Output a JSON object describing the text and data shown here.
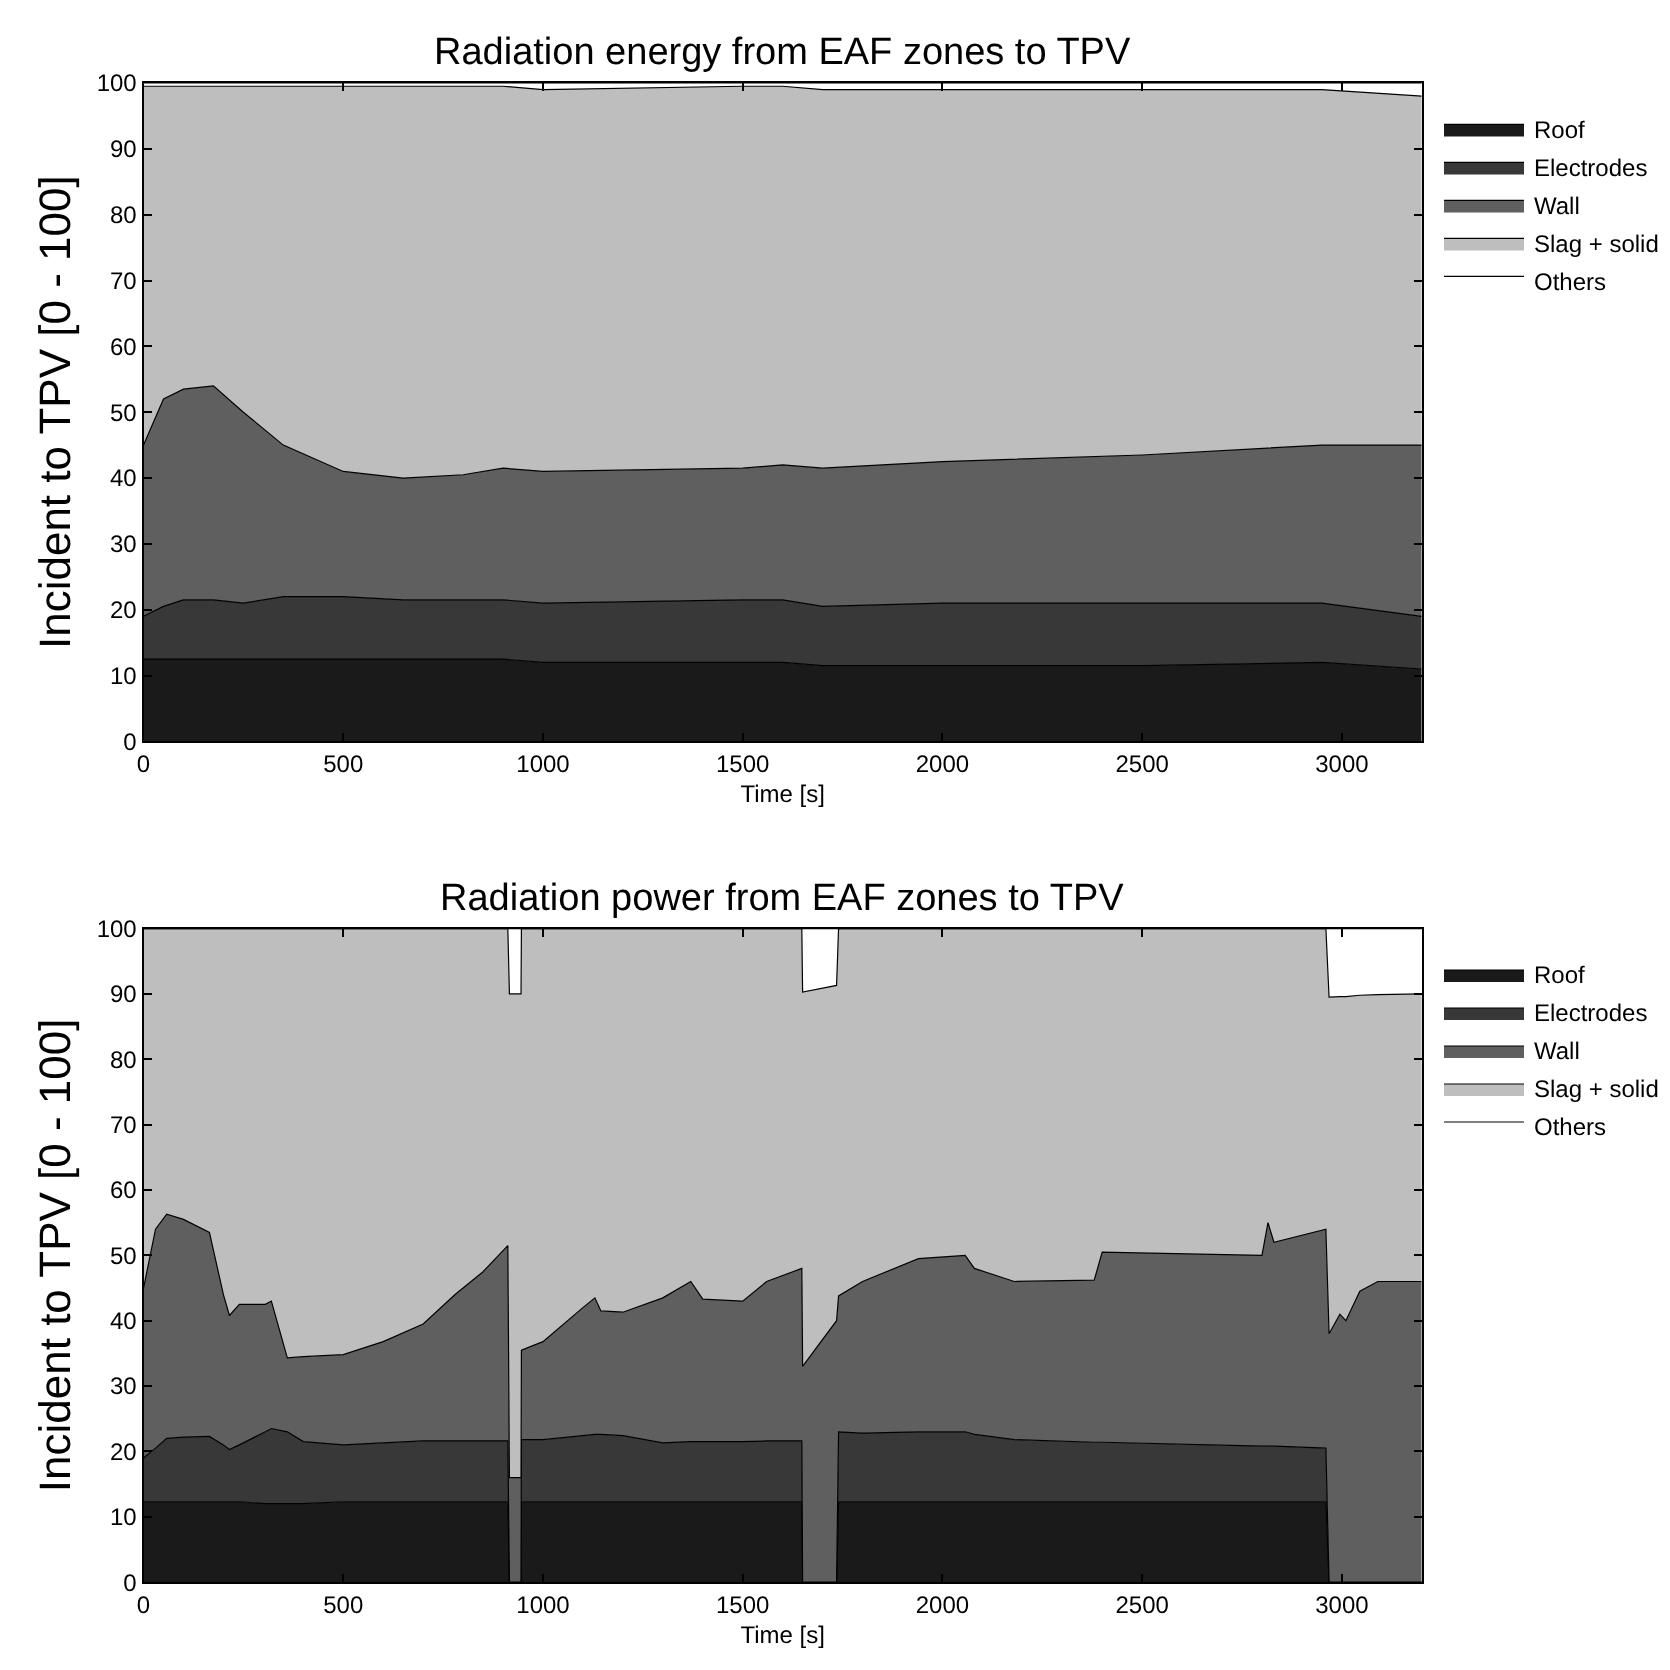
{
  "chart_data": [
    {
      "type": "area",
      "stacked": true,
      "title": "Radiation energy from EAF zones to TPV",
      "xlabel": "Time [s]",
      "ylabel": "Incident to TPV [0 - 100]",
      "xlim": [
        0,
        3200
      ],
      "xticks": [
        0,
        500,
        1000,
        1500,
        2000,
        2500,
        3000
      ],
      "ylim": [
        0,
        100
      ],
      "yticks": [
        0,
        10,
        20,
        30,
        40,
        50,
        60,
        70,
        80,
        90,
        100
      ],
      "legend": "right",
      "x": [
        0,
        50,
        100,
        175,
        250,
        350,
        500,
        650,
        800,
        900,
        1000,
        1500,
        1600,
        1700,
        2000,
        2500,
        2950,
        3200
      ],
      "series": [
        {
          "name": "Roof",
          "color": "#1a1a1a",
          "values": [
            12.5,
            12.5,
            12.5,
            12.5,
            12.5,
            12.5,
            12.5,
            12.5,
            12.5,
            12.5,
            12,
            12,
            12,
            11.5,
            11.5,
            11.5,
            12,
            11
          ]
        },
        {
          "name": "Electrodes",
          "color": "#383838",
          "values": [
            6.5,
            8,
            9,
            9,
            8.5,
            9.5,
            9.5,
            9,
            9,
            9,
            9,
            9.5,
            9.5,
            9,
            9.5,
            9.5,
            9,
            8
          ]
        },
        {
          "name": "Wall",
          "color": "#5f5f5f",
          "values": [
            26,
            31.5,
            32,
            32.5,
            29,
            23,
            19,
            18.5,
            19,
            20,
            20,
            20,
            20.5,
            21,
            21.5,
            22.5,
            24,
            26
          ]
        },
        {
          "name": "Slag + solid",
          "color": "#bebebe",
          "values": [
            54.5,
            47.5,
            46,
            45.5,
            49.5,
            54.5,
            58.5,
            59.5,
            59,
            58,
            58,
            58,
            57.5,
            57.5,
            56.5,
            55.5,
            54,
            53
          ]
        },
        {
          "name": "Others",
          "color": "#ffffff",
          "values": [
            0.5,
            0.5,
            0.5,
            0.5,
            0.5,
            0.5,
            0.5,
            0.5,
            0.5,
            0.5,
            1,
            0.5,
            0.5,
            1,
            1,
            1,
            1,
            2
          ]
        }
      ]
    },
    {
      "type": "area",
      "stacked": true,
      "title": "Radiation power from EAF zones to TPV",
      "xlabel": "Time [s]",
      "ylabel": "Incident to TPV [0 - 100]",
      "xlim": [
        0,
        3200
      ],
      "xticks": [
        0,
        500,
        1000,
        1500,
        2000,
        2500,
        3000
      ],
      "ylim": [
        0,
        100
      ],
      "yticks": [
        0,
        10,
        20,
        30,
        40,
        50,
        60,
        70,
        80,
        90,
        100
      ],
      "legend": "right",
      "x": [
        0,
        30,
        58,
        100,
        165,
        200,
        215,
        240,
        305,
        320,
        360,
        400,
        500,
        600,
        700,
        780,
        850,
        912,
        916,
        945,
        946,
        1000,
        1100,
        1130,
        1145,
        1200,
        1300,
        1370,
        1400,
        1500,
        1560,
        1648,
        1650,
        1735,
        1740,
        1800,
        1940,
        2057,
        2080,
        2180,
        2380,
        2400,
        2800,
        2815,
        2830,
        2960,
        2968,
        2995,
        3010,
        3045,
        3090,
        3200
      ],
      "series": [
        {
          "name": "Roof",
          "color": "#1a1a1a",
          "values": [
            12.3,
            12.3,
            12.3,
            12.3,
            12.3,
            12.3,
            12.3,
            12.3,
            12,
            12,
            12,
            12,
            12.3,
            12.3,
            12.3,
            12.3,
            12.3,
            12.3,
            0,
            0,
            12.3,
            12.3,
            12.3,
            12.3,
            12.3,
            12.3,
            12.3,
            12.3,
            12.3,
            12.3,
            12.3,
            12.3,
            0,
            0,
            12.3,
            12.3,
            12.3,
            12.3,
            12.3,
            12.3,
            12.3,
            12.3,
            12.3,
            12.3,
            12.3,
            12.3,
            0,
            0,
            0,
            0,
            0,
            0
          ]
        },
        {
          "name": "Electrodes",
          "color": "#383838",
          "values": [
            6.7,
            8.2,
            9.7,
            9.9,
            10,
            8.7,
            8,
            8.7,
            11,
            11.5,
            11,
            9.5,
            8.7,
            9,
            9.3,
            9.3,
            9.3,
            9.3,
            0,
            0,
            9.5,
            9.5,
            10.1,
            10.3,
            10.3,
            10.1,
            9,
            9.2,
            9.2,
            9.2,
            9.3,
            9.3,
            0,
            0,
            10.7,
            10.5,
            10.7,
            10.7,
            10.3,
            9.5,
            9.1,
            9.1,
            8.5,
            8.5,
            8.5,
            8.2,
            0,
            0,
            0,
            0,
            0,
            0
          ]
        },
        {
          "name": "Wall",
          "color": "#5f5f5f",
          "values": [
            26,
            33.5,
            34.3,
            33.3,
            31.2,
            23,
            20.5,
            21.5,
            19.5,
            19.5,
            11.3,
            13,
            13.8,
            15.5,
            17.9,
            22.4,
            25.9,
            29.9,
            16,
            16,
            13.7,
            15,
            19.6,
            20.9,
            18.9,
            18.9,
            22.2,
            24.5,
            21.8,
            21.5,
            24.4,
            26.4,
            33,
            40,
            20.8,
            23.2,
            26.5,
            27,
            25.4,
            24.2,
            24.8,
            29.1,
            29.2,
            34.2,
            31.2,
            33.5,
            38,
            41,
            40,
            44.5,
            46,
            46
          ]
        },
        {
          "name": "Slag + solid",
          "color": "#bebebe",
          "values": [
            55,
            46,
            43.7,
            44.5,
            46.5,
            56,
            59.2,
            57.5,
            57.5,
            57,
            65.7,
            65.5,
            65.2,
            63.2,
            60.5,
            56,
            52.5,
            48.5,
            74,
            74,
            64.5,
            63.2,
            58,
            56.5,
            58.5,
            58.7,
            56.5,
            54,
            56.7,
            57,
            54,
            52,
            57.3,
            51.3,
            56.2,
            54,
            50.5,
            50,
            52,
            54,
            53.8,
            49.5,
            50,
            45,
            48,
            46,
            51.5,
            48.6,
            49.6,
            45.3,
            43.9,
            44
          ]
        },
        {
          "name": "Others",
          "color": "#ffffff",
          "values": [
            0,
            0,
            0,
            0,
            0,
            0,
            0,
            0,
            0,
            0,
            0,
            0,
            0,
            0,
            0,
            0,
            0,
            0,
            10,
            10,
            0,
            0,
            0,
            0,
            0,
            0,
            0,
            0,
            0,
            0,
            0,
            0,
            9.7,
            8.7,
            0,
            0,
            0,
            0,
            0,
            0,
            0,
            0,
            0,
            0,
            0,
            0,
            10.5,
            10.4,
            10.4,
            10.2,
            10.1,
            10
          ]
        }
      ]
    }
  ]
}
